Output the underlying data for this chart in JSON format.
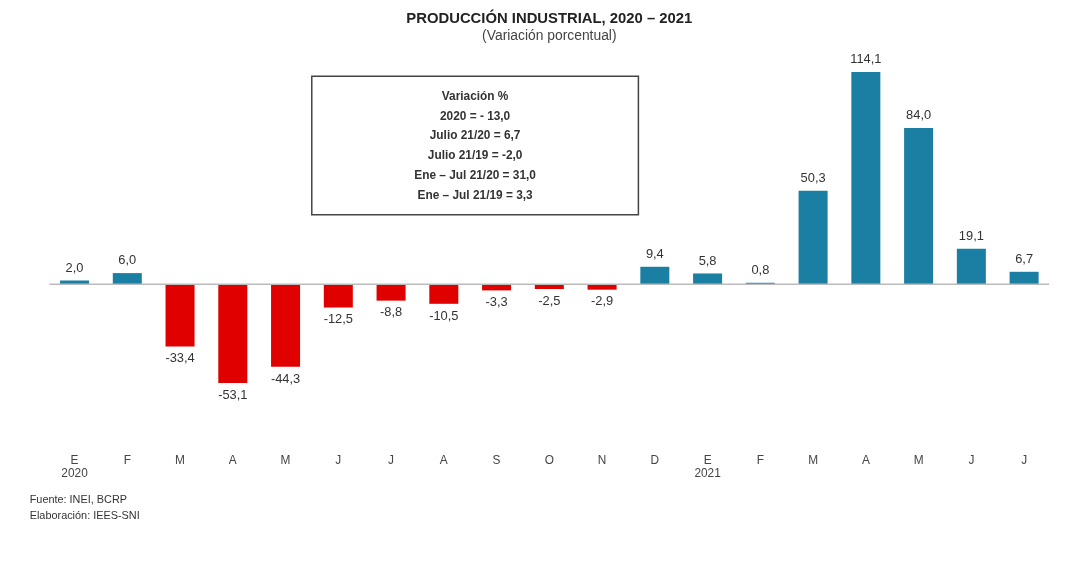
{
  "chart_data": {
    "type": "bar",
    "title": "PRODUCCIÓN INDUSTRIAL, 2020 – 2021",
    "subtitle": "(Variación porcentual)",
    "categories": [
      "E\n2020",
      "F",
      "M",
      "A",
      "M",
      "J",
      "J",
      "A",
      "S",
      "O",
      "N",
      "D",
      "E\n2021",
      "F",
      "M",
      "A",
      "M",
      "J",
      "J"
    ],
    "values": [
      2.0,
      6.0,
      -33.4,
      -53.1,
      -44.3,
      -12.5,
      -8.8,
      -10.5,
      -3.3,
      -2.5,
      -2.9,
      9.4,
      5.8,
      0.8,
      50.3,
      114.1,
      84.0,
      19.1,
      6.7
    ],
    "colors": [
      "#1b7fa3",
      "#1b7fa3",
      "#e00000",
      "#e00000",
      "#e00000",
      "#e00000",
      "#e00000",
      "#e00000",
      "#e00000",
      "#e00000",
      "#e00000",
      "#1b7fa3",
      "#1b7fa3",
      "#1b7fa3",
      "#1b7fa3",
      "#1b7fa3",
      "#1b7fa3",
      "#1b7fa3",
      "#1b7fa3"
    ],
    "value_labels": [
      "2,0",
      "6,0",
      "-33,4",
      "-53,1",
      "-44,3",
      "-12,5",
      "-8,8",
      "-10,5",
      "-3,3",
      "-2,5",
      "-2,9",
      "9,4",
      "5,8",
      "0,8",
      "50,3",
      "114,1",
      "84,0",
      "19,1",
      "6,7"
    ],
    "annotations": [
      "Variación %",
      "2020 = - 13,0",
      "Julio 21/20 = 6,7",
      "Julio 21/19 = -2,0",
      "Ene – Jul 21/20 = 31,0",
      "Ene – Jul 21/19 = 3,3",
      "Fuente: INEI, BCRP",
      "Elaboración: IEES-SNI"
    ],
    "grid": false
  }
}
